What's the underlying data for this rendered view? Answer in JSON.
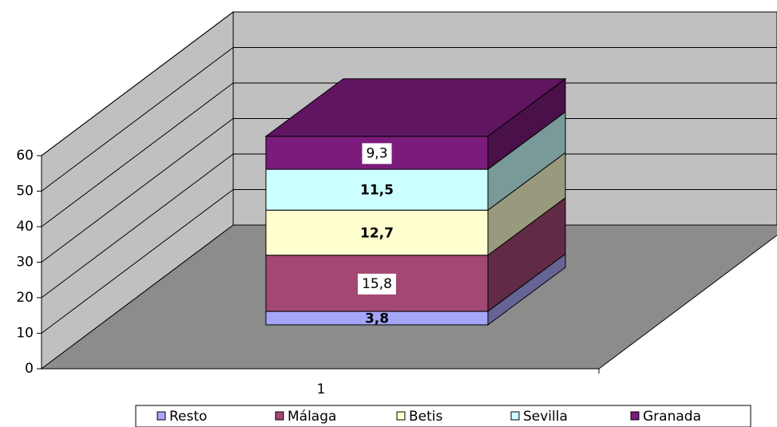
{
  "chart_data": {
    "type": "bar3d_stacked",
    "categories": [
      "1"
    ],
    "series": [
      {
        "name": "Resto",
        "color": "#a6a6f8",
        "values": [
          3.8
        ],
        "value_labels": [
          "3,8"
        ]
      },
      {
        "name": "Málaga",
        "color": "#a24873",
        "values": [
          15.8
        ],
        "value_labels": [
          "15,8"
        ]
      },
      {
        "name": "Betis",
        "color": "#ffffd0",
        "values": [
          12.7
        ],
        "value_labels": [
          "12,7"
        ]
      },
      {
        "name": "Sevilla",
        "color": "#ccffff",
        "values": [
          11.5
        ],
        "value_labels": [
          "11,5"
        ]
      },
      {
        "name": "Granada",
        "color": "#7b1b7b",
        "values": [
          9.3
        ],
        "value_labels": [
          "9,3"
        ]
      }
    ],
    "ylim": [
      0,
      60
    ],
    "yticks": [
      0,
      10,
      20,
      30,
      40,
      50,
      60
    ],
    "grid": true,
    "legend": "bottom"
  }
}
